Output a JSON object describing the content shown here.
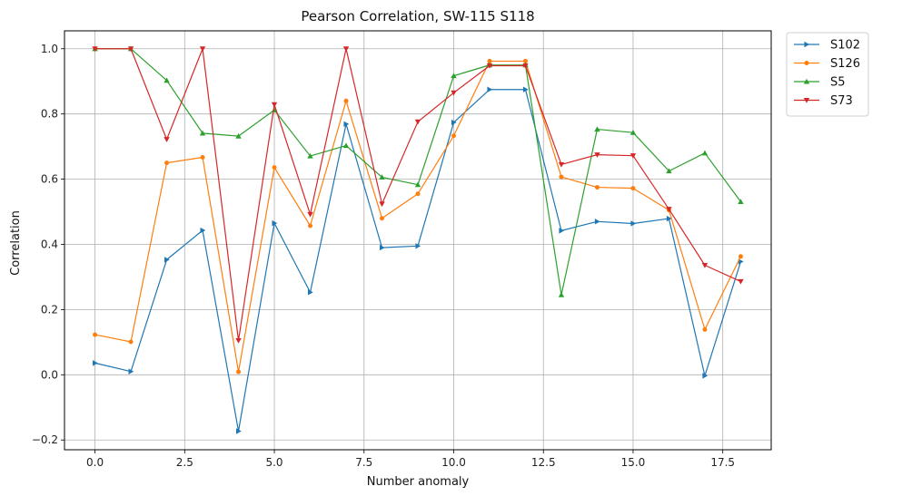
{
  "chart_data": {
    "type": "line",
    "title": "Pearson Correlation, SW-115  S118",
    "xlabel": "Number anomaly",
    "ylabel": "Correlation",
    "xlim": [
      -0.85,
      18.85
    ],
    "ylim": [
      -0.23,
      1.055
    ],
    "xticks": [
      0.0,
      2.5,
      5.0,
      7.5,
      10.0,
      12.5,
      15.0,
      17.5
    ],
    "xtick_labels": [
      "0.0",
      "2.5",
      "5.0",
      "7.5",
      "10.0",
      "12.5",
      "15.0",
      "17.5"
    ],
    "yticks": [
      -0.2,
      0.0,
      0.2,
      0.4,
      0.6,
      0.8,
      1.0
    ],
    "ytick_labels": [
      "−0.2",
      "0.0",
      "0.2",
      "0.4",
      "0.6",
      "0.8",
      "1.0"
    ],
    "grid": true,
    "legend_position": "outside-top-right",
    "x": [
      0,
      1,
      2,
      3,
      4,
      5,
      6,
      7,
      8,
      9,
      10,
      11,
      12,
      13,
      14,
      15,
      16,
      17,
      18
    ],
    "series": [
      {
        "name": "S102",
        "color": "#1f77b4",
        "marker": "triangle-right",
        "values": [
          0.036,
          0.01,
          0.353,
          0.443,
          -0.173,
          0.465,
          0.253,
          0.769,
          0.39,
          0.395,
          0.774,
          0.875,
          0.875,
          0.442,
          0.47,
          0.464,
          0.479,
          -0.003,
          0.347
        ]
      },
      {
        "name": "S126",
        "color": "#ff7f0e",
        "marker": "circle",
        "values": [
          0.123,
          0.101,
          0.65,
          0.667,
          0.009,
          0.636,
          0.457,
          0.84,
          0.48,
          0.555,
          0.733,
          0.962,
          0.962,
          0.607,
          0.575,
          0.572,
          0.505,
          0.139,
          0.363
        ]
      },
      {
        "name": "S5",
        "color": "#2ca02c",
        "marker": "triangle-up",
        "values": [
          1.0,
          1.0,
          0.903,
          0.741,
          0.732,
          0.812,
          0.671,
          0.703,
          0.606,
          0.583,
          0.917,
          0.95,
          0.95,
          0.245,
          0.753,
          0.743,
          0.625,
          0.68,
          0.531
        ]
      },
      {
        "name": "S73",
        "color": "#d62728",
        "marker": "triangle-down",
        "values": [
          1.0,
          1.0,
          0.722,
          1.0,
          0.105,
          0.829,
          0.492,
          1.0,
          0.524,
          0.776,
          0.865,
          0.948,
          0.948,
          0.645,
          0.675,
          0.672,
          0.508,
          0.336,
          0.286
        ]
      }
    ]
  }
}
